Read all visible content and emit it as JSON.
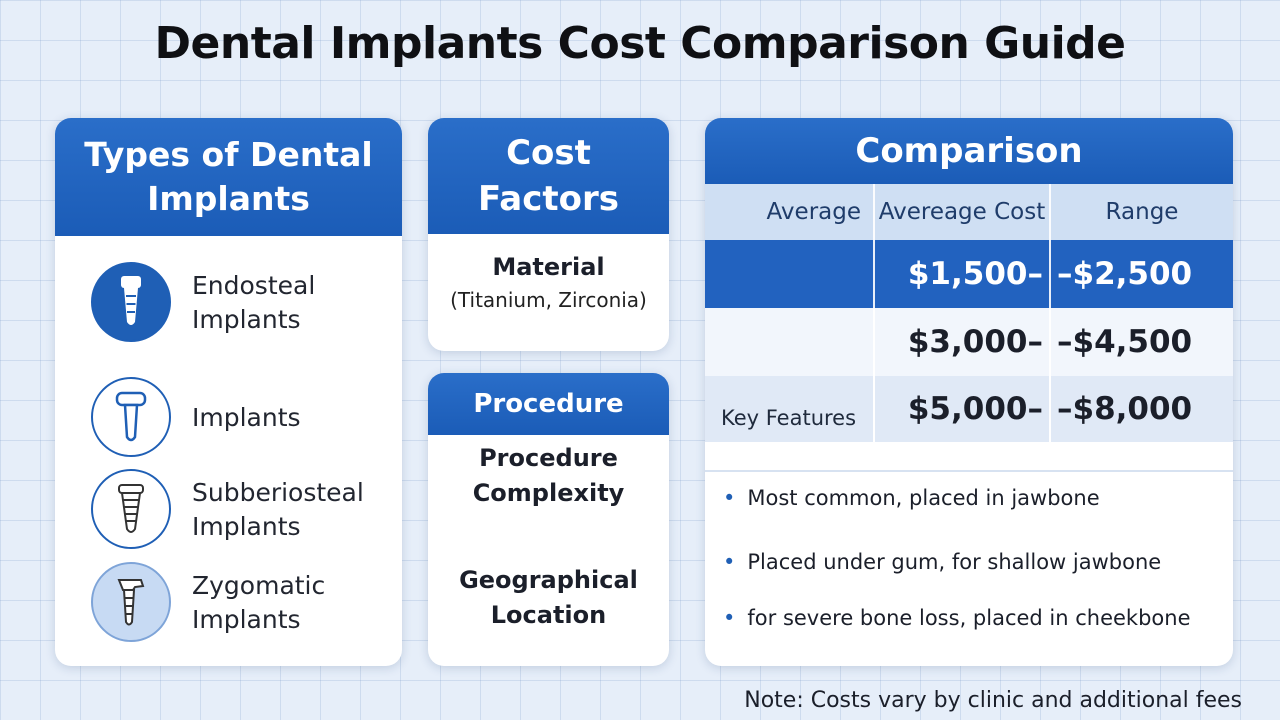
{
  "title": "Dental Implants Cost Comparison Guide",
  "types_card": {
    "heading": "Types of Dental Implants",
    "items": [
      {
        "line1": "Endosteal",
        "line2": "Implants",
        "icon": "endosteal-implant-icon"
      },
      {
        "line1": "Implants",
        "line2": "",
        "icon": "implant-icon"
      },
      {
        "line1": "Subberiosteal",
        "line2": "Implants",
        "icon": "subperiosteal-implant-icon"
      },
      {
        "line1": "Zygomatic",
        "line2": "Implants",
        "icon": "zygomatic-implant-icon"
      }
    ]
  },
  "factors_card": {
    "heading": "Cost Factors",
    "material_label": "Material",
    "material_detail": "(Titanium, Zirconia)"
  },
  "procedure_card": {
    "heading": "Procedure",
    "factor1_line1": "Procedure",
    "factor1_line2": "Complexity",
    "factor2_line1": "Geographical",
    "factor2_line2": "Location"
  },
  "comparison_card": {
    "heading": "Comparison",
    "columns": [
      "Average",
      "Avereage Cost",
      "Range"
    ],
    "rows": [
      {
        "label": "",
        "low": "$1,500–",
        "high": "–$2,500"
      },
      {
        "label": "",
        "low": "$3,000–",
        "high": "–$4,500"
      },
      {
        "label": "Key Features",
        "low": "$5,000–",
        "high": "–$8,000"
      }
    ],
    "features": [
      "Most common, placed in jawbone",
      "Placed under gum, for shallow jawbone",
      "for severe bone loss, placed in cheekbone"
    ]
  },
  "note": "Note: Costs vary by clinic and additional fees",
  "colors": {
    "accent": "#1f5fb5",
    "header_blue": "#2262bf",
    "background": "#e6eef9"
  }
}
